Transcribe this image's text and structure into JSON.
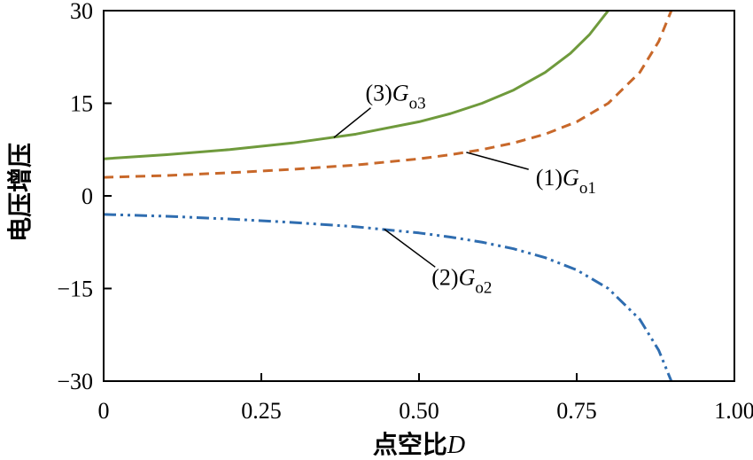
{
  "chart_data": {
    "type": "line",
    "xlabel": "点空比",
    "xlabel_var": "D",
    "ylabel": "电压增压",
    "xlim": [
      0,
      1.0
    ],
    "ylim": [
      -30,
      30
    ],
    "xticks": [
      0,
      0.25,
      0.5,
      0.75,
      1.0
    ],
    "xtick_labels": [
      "0",
      "0.25",
      "0.50",
      "0.75",
      "1.00"
    ],
    "yticks": [
      30,
      15,
      0,
      -15,
      -30
    ],
    "ytick_labels": [
      "30",
      "15",
      "0",
      "−15",
      "−30"
    ],
    "grid": false,
    "series": [
      {
        "name": "(1)Go1",
        "label_prefix": "(1)",
        "label_var": "G",
        "label_sub": "o1",
        "color": "#c8682a",
        "style": "dashed",
        "x": [
          0,
          0.1,
          0.2,
          0.3,
          0.4,
          0.5,
          0.55,
          0.6,
          0.65,
          0.7,
          0.75,
          0.8,
          0.85,
          0.88,
          0.9
        ],
        "y": [
          3.0,
          3.3,
          3.75,
          4.3,
          5.0,
          6.0,
          6.67,
          7.5,
          8.57,
          10.0,
          12.0,
          15.0,
          20.0,
          25.0,
          30.0
        ]
      },
      {
        "name": "(2)Go2",
        "label_prefix": "(2)",
        "label_var": "G",
        "label_sub": "o2",
        "color": "#2f6db0",
        "style": "dashdotdot",
        "x": [
          0,
          0.1,
          0.2,
          0.3,
          0.4,
          0.5,
          0.55,
          0.6,
          0.65,
          0.7,
          0.75,
          0.8,
          0.85,
          0.88,
          0.9
        ],
        "y": [
          -3.0,
          -3.3,
          -3.75,
          -4.3,
          -5.0,
          -6.0,
          -6.67,
          -7.5,
          -8.57,
          -10.0,
          -12.0,
          -15.0,
          -20.0,
          -25.0,
          -30.0
        ]
      },
      {
        "name": "(3)Go3",
        "label_prefix": "(3)",
        "label_var": "G",
        "label_sub": "o3",
        "color": "#6f9a3c",
        "style": "solid",
        "x": [
          0,
          0.1,
          0.2,
          0.3,
          0.4,
          0.5,
          0.55,
          0.6,
          0.65,
          0.7,
          0.74,
          0.77,
          0.8
        ],
        "y": [
          6.0,
          6.67,
          7.5,
          8.57,
          10.0,
          12.0,
          13.33,
          15.0,
          17.14,
          20.0,
          23.08,
          26.09,
          30.0
        ]
      }
    ],
    "annotations": [
      {
        "series": 2,
        "text_at": [
          0.415,
          15.4
        ],
        "point": [
          0.365,
          9.45
        ]
      },
      {
        "series": 0,
        "text_at": [
          0.685,
          1.7
        ],
        "point": [
          0.575,
          7.05
        ]
      },
      {
        "series": 1,
        "text_at": [
          0.52,
          -14.4
        ],
        "point": [
          0.445,
          -5.4
        ]
      }
    ]
  }
}
